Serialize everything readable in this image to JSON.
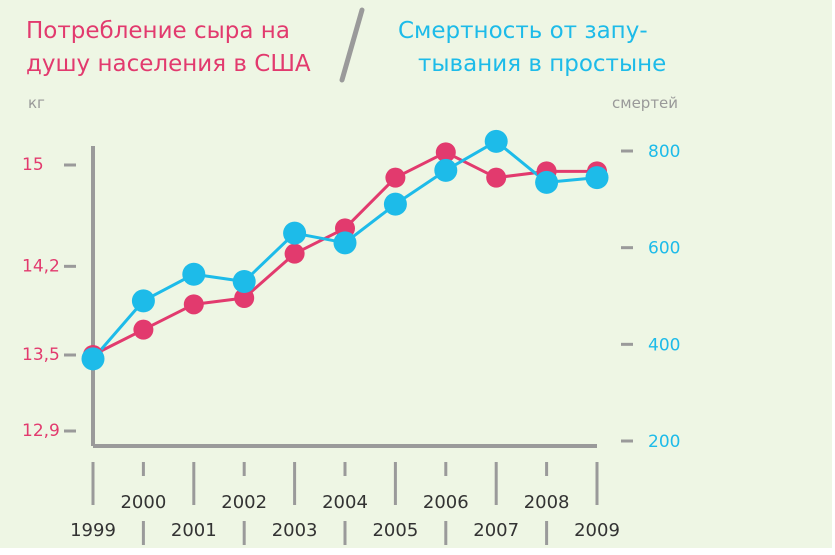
{
  "colors": {
    "background": "#eef6e4",
    "cheese": "#e23a6e",
    "deaths": "#1dbbe9",
    "axis": "#9a9a9a"
  },
  "titles": {
    "left_line1": "Потребление сыра на",
    "left_line2": "душу населения в США",
    "right_line1": "Смертность от запу-",
    "right_line2": "тывания в простыне"
  },
  "chart_data": {
    "type": "line",
    "x": [
      1999,
      2000,
      2001,
      2002,
      2003,
      2004,
      2005,
      2006,
      2007,
      2008,
      2009
    ],
    "series": [
      {
        "name": "Потребление сыра на душу населения в США",
        "axis": "left",
        "unit": "кг",
        "values": [
          13.5,
          13.7,
          13.9,
          13.95,
          14.3,
          14.5,
          14.9,
          15.1,
          14.9,
          14.95,
          14.95
        ]
      },
      {
        "name": "Смертность от запутывания в простыне",
        "axis": "right",
        "unit": "смертей",
        "values": [
          370,
          490,
          545,
          530,
          630,
          610,
          690,
          760,
          820,
          735,
          745
        ]
      }
    ],
    "y_left": {
      "label": "кг",
      "ticks": [
        "12,9",
        "13,5",
        "14,2",
        "15"
      ],
      "tick_values": [
        12.9,
        13.5,
        14.2,
        15.0
      ],
      "min": 12.9,
      "max": 15.0
    },
    "y_right": {
      "label": "смертей",
      "ticks": [
        "200",
        "400",
        "600",
        "800"
      ],
      "tick_values": [
        200,
        400,
        600,
        800
      ],
      "min": 200,
      "max": 800
    },
    "x_tick_labels": [
      "1999",
      "2000",
      "2001",
      "2002",
      "2003",
      "2004",
      "2005",
      "2006",
      "2007",
      "2008",
      "2009"
    ],
    "grid": false,
    "legend": "top"
  }
}
